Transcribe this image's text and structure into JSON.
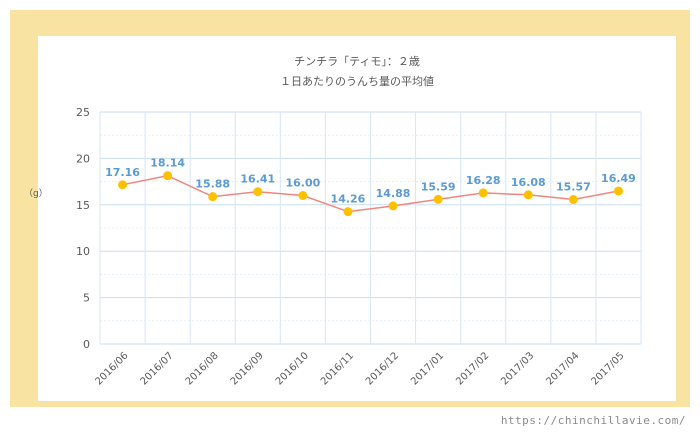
{
  "chart_data": {
    "type": "line",
    "title": "チンチラ「ティモ」：２歳",
    "subtitle": "１日あたりのうんち量の平均値",
    "ylabel": "（g）",
    "xlabel": "",
    "ylim": [
      0,
      25
    ],
    "yticks": [
      0,
      5,
      10,
      15,
      20,
      25
    ],
    "grid": true,
    "legend": "none",
    "categories": [
      "2016/06",
      "2016/07",
      "2016/08",
      "2016/09",
      "2016/10",
      "2016/11",
      "2016/12",
      "2017/01",
      "2017/02",
      "2017/03",
      "2017/04",
      "2017/05"
    ],
    "series": [
      {
        "values": [
          17.16,
          18.14,
          15.88,
          16.41,
          16.0,
          14.26,
          14.88,
          15.59,
          16.28,
          16.08,
          15.57,
          16.49
        ],
        "labels": [
          "17.16",
          "18.14",
          "15.88",
          "16.41",
          "16.00",
          "14.26",
          "14.88",
          "15.59",
          "16.28",
          "16.08",
          "15.57",
          "16.49"
        ],
        "line_color": "#f2867e",
        "marker_color": "#ffc000",
        "label_color": "#5b9bd5"
      }
    ]
  },
  "watermark": "https://chinchillavie.com/"
}
